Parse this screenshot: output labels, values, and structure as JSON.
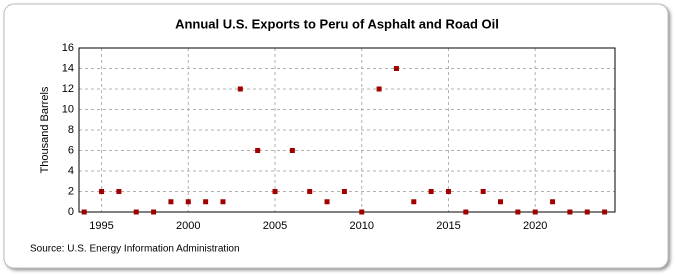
{
  "chart_data": {
    "type": "scatter",
    "title": "Annual U.S. Exports to Peru of Asphalt and Road Oil",
    "y_label": "Thousand Barrels",
    "source": "Source: U.S. Energy Information Administration",
    "x": [
      1994,
      1995,
      1996,
      1997,
      1998,
      1999,
      2000,
      2001,
      2002,
      2003,
      2004,
      2005,
      2006,
      2007,
      2008,
      2009,
      2010,
      2011,
      2012,
      2013,
      2014,
      2015,
      2016,
      2017,
      2018,
      2019,
      2020,
      2021,
      2022,
      2023,
      2024
    ],
    "series": [
      {
        "color": "#a00000",
        "values": [
          0,
          2,
          2,
          0,
          0,
          1,
          1,
          1,
          1,
          12,
          6,
          2,
          6,
          2,
          1,
          2,
          0,
          12,
          14,
          1,
          2,
          2,
          0,
          2,
          1,
          0,
          0,
          1,
          0,
          0,
          0
        ]
      }
    ],
    "xlim": [
      1993.7,
      2024.6
    ],
    "xticks": [
      1995,
      2000,
      2005,
      2010,
      2015,
      2020
    ],
    "ylim": [
      0,
      16
    ],
    "yticks": [
      0,
      2,
      4,
      6,
      8,
      10,
      12,
      14,
      16
    ],
    "grid": true
  }
}
